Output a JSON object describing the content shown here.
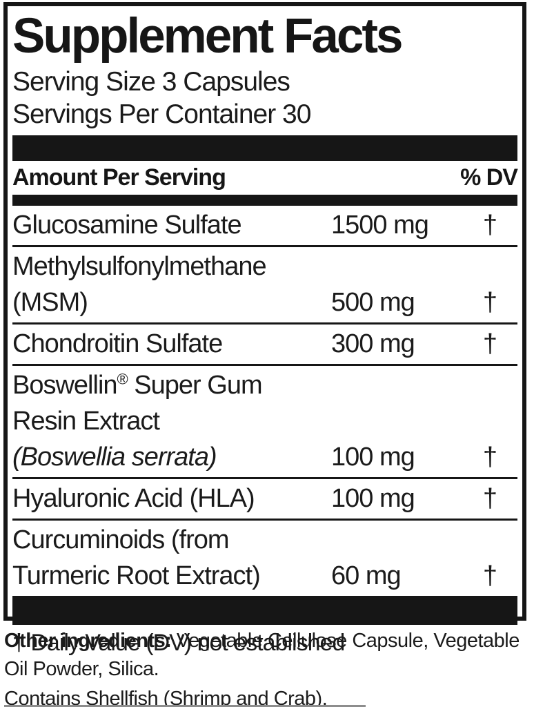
{
  "label": {
    "title": "Supplement Facts",
    "serving_size": "Serving Size 3 Capsules",
    "servings_per_container": "Servings Per Container 30",
    "header": {
      "amount_per_serving": "Amount Per Serving",
      "percent_dv": "% DV"
    },
    "rows": [
      {
        "line1": "Glucosamine Sulfate",
        "amount": "1500 mg",
        "dv": "†"
      },
      {
        "line1": "Methylsulfonylmethane",
        "line2": "(MSM)",
        "amount": "500 mg",
        "dv": "†"
      },
      {
        "line1": "Chondroitin Sulfate",
        "amount": "300 mg",
        "dv": "†"
      },
      {
        "line1_pre": "Boswellin",
        "line1_sup": "®",
        "line1_rest": " Super Gum",
        "line2": "Resin Extract",
        "line3_italic": "(Boswellia serrata)",
        "amount": "100 mg",
        "dv": "†"
      },
      {
        "line1": "Hyaluronic Acid (HLA)",
        "amount": "100 mg",
        "dv": "†"
      },
      {
        "line1": "Curcuminoids (from",
        "line2": "Turmeric Root Extract)",
        "amount": "60 mg",
        "dv": "†"
      }
    ],
    "footnote": "† Daily Value (DV) not established",
    "other_ingredients_label": "Other ingredients:",
    "other_ingredients_text": " Vegetable Cellulose Capsule, Vegetable Oil Powder, Silica.",
    "contains": "Contains Shellfish (Shrimp and Crab).",
    "colors": {
      "ink": "#161616",
      "background": "#ffffff"
    }
  }
}
